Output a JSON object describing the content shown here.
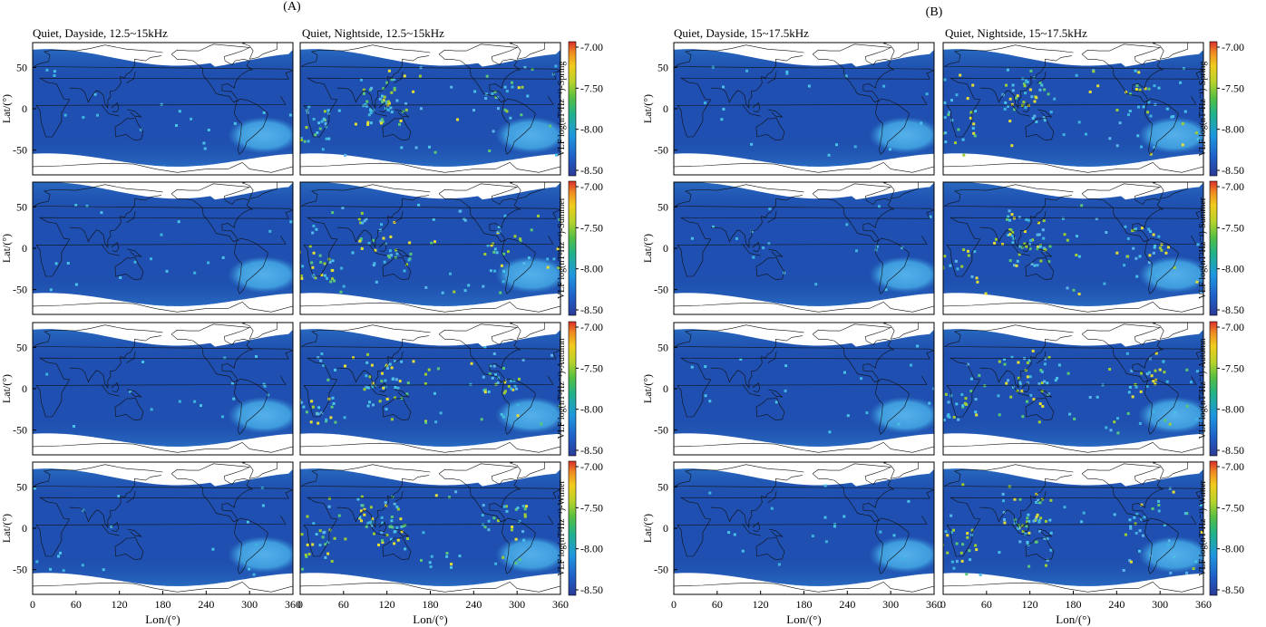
{
  "figure": {
    "groups": [
      {
        "label": "(A)",
        "columns": [
          {
            "title": "Quiet, Dayside, 12.5~15kHz"
          },
          {
            "title": "Quiet, Nightside, 12.5~15kHz"
          }
        ]
      },
      {
        "label": "(B)",
        "columns": [
          {
            "title": "Quiet, Dayside, 15~17.5kHz"
          },
          {
            "title": "Quiet, Nightside, 15~17.5kHz"
          }
        ]
      }
    ],
    "seasons": [
      "Spring",
      "Summer",
      "Autumn",
      "Winter"
    ],
    "xlabel": "Lon/(°)",
    "ylabel": "Lat/(°)",
    "colorbar_label_prefix": "VLF  log(nT²Hz⁻¹)-",
    "colorbar_ticks": [
      "-7.00",
      "-7.50",
      "-8.00",
      "-8.50"
    ]
  },
  "chart_data": {
    "type": "heatmap",
    "description_of_encoding": "global map of VLF electric-field power spectral density, log scale",
    "x": {
      "label": "Lon/(°)",
      "range": [
        0,
        360
      ],
      "ticks": [
        0,
        60,
        120,
        180,
        240,
        300,
        360
      ]
    },
    "y": {
      "label": "Lat/(°)",
      "range": [
        -80,
        80
      ],
      "ticks": [
        -50,
        0,
        50
      ]
    },
    "color_scale": {
      "range": [
        -8.5,
        -7.0
      ],
      "ticks": [
        -7.0,
        -7.5,
        -8.0,
        -8.5
      ],
      "unit": "log(nT²Hz⁻¹)",
      "colors": [
        "#2b3a96",
        "#1f64c8",
        "#1e9be0",
        "#1fb574",
        "#9acd2e",
        "#f3d01c",
        "#f08a20",
        "#d9302a"
      ]
    },
    "panels_layout": {
      "rows": "seasons (Spring, Summer, Autumn, Winter)",
      "columns": "Dayside/Nightside × frequency band"
    },
    "background_level": -8.3,
    "south_atlantic_anomaly_level": -8.1,
    "panels": [
      {
        "band": "12.5~15kHz",
        "side": "Dayside"
      },
      {
        "band": "12.5~15kHz",
        "side": "Nightside"
      },
      {
        "band": "15~17.5kHz",
        "side": "Dayside"
      },
      {
        "band": "15~17.5kHz",
        "side": "Nightside"
      }
    ],
    "colors": {
      "background": "#1f4fb0",
      "enhanced": "#43a3e0",
      "hot_spot": "#e9e23a",
      "no_data": "#ffffff"
    }
  }
}
